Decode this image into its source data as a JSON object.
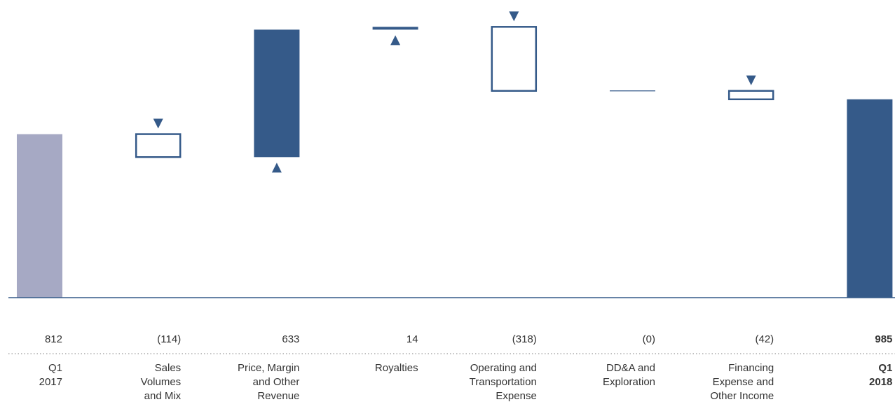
{
  "chart_data": {
    "type": "waterfall",
    "title": "",
    "xlabel": "",
    "ylabel": "",
    "grid": false,
    "legend": "none",
    "ylim": [
      0,
      1300
    ],
    "colors": {
      "total_start": "#a6a9c4",
      "total_end": "#355a89",
      "increase": "#355a89",
      "decrease_stroke": "#355a89",
      "decrease_fill": "#ffffff",
      "axis": "#355a89",
      "text": "#333333",
      "dots": "#9a9a9a"
    },
    "bars": [
      {
        "kind": "start",
        "value": 812,
        "display": "812",
        "label": [
          "Q1",
          "2017"
        ],
        "bold": false
      },
      {
        "kind": "decrease",
        "value": -114,
        "display": "(114)",
        "label": [
          "Sales",
          "Volumes",
          "and Mix"
        ],
        "bold": false
      },
      {
        "kind": "increase",
        "value": 633,
        "display": "633",
        "label": [
          "Price, Margin",
          "and Other",
          "Revenue"
        ],
        "bold": false
      },
      {
        "kind": "increase",
        "value": 14,
        "display": "14",
        "label": [
          "Royalties"
        ],
        "bold": false
      },
      {
        "kind": "decrease",
        "value": -318,
        "display": "(318)",
        "label": [
          "Operating and",
          "Transportation",
          "Expense"
        ],
        "bold": false
      },
      {
        "kind": "neutral",
        "value": 0,
        "display": "(0)",
        "label": [
          "DD&A and",
          "Exploration"
        ],
        "bold": false
      },
      {
        "kind": "decrease",
        "value": -42,
        "display": "(42)",
        "label": [
          "Financing",
          "Expense and",
          "Other Income"
        ],
        "bold": false
      },
      {
        "kind": "end",
        "value": 985,
        "display": "985",
        "label": [
          "Q1",
          "2018"
        ],
        "bold": true
      }
    ]
  }
}
